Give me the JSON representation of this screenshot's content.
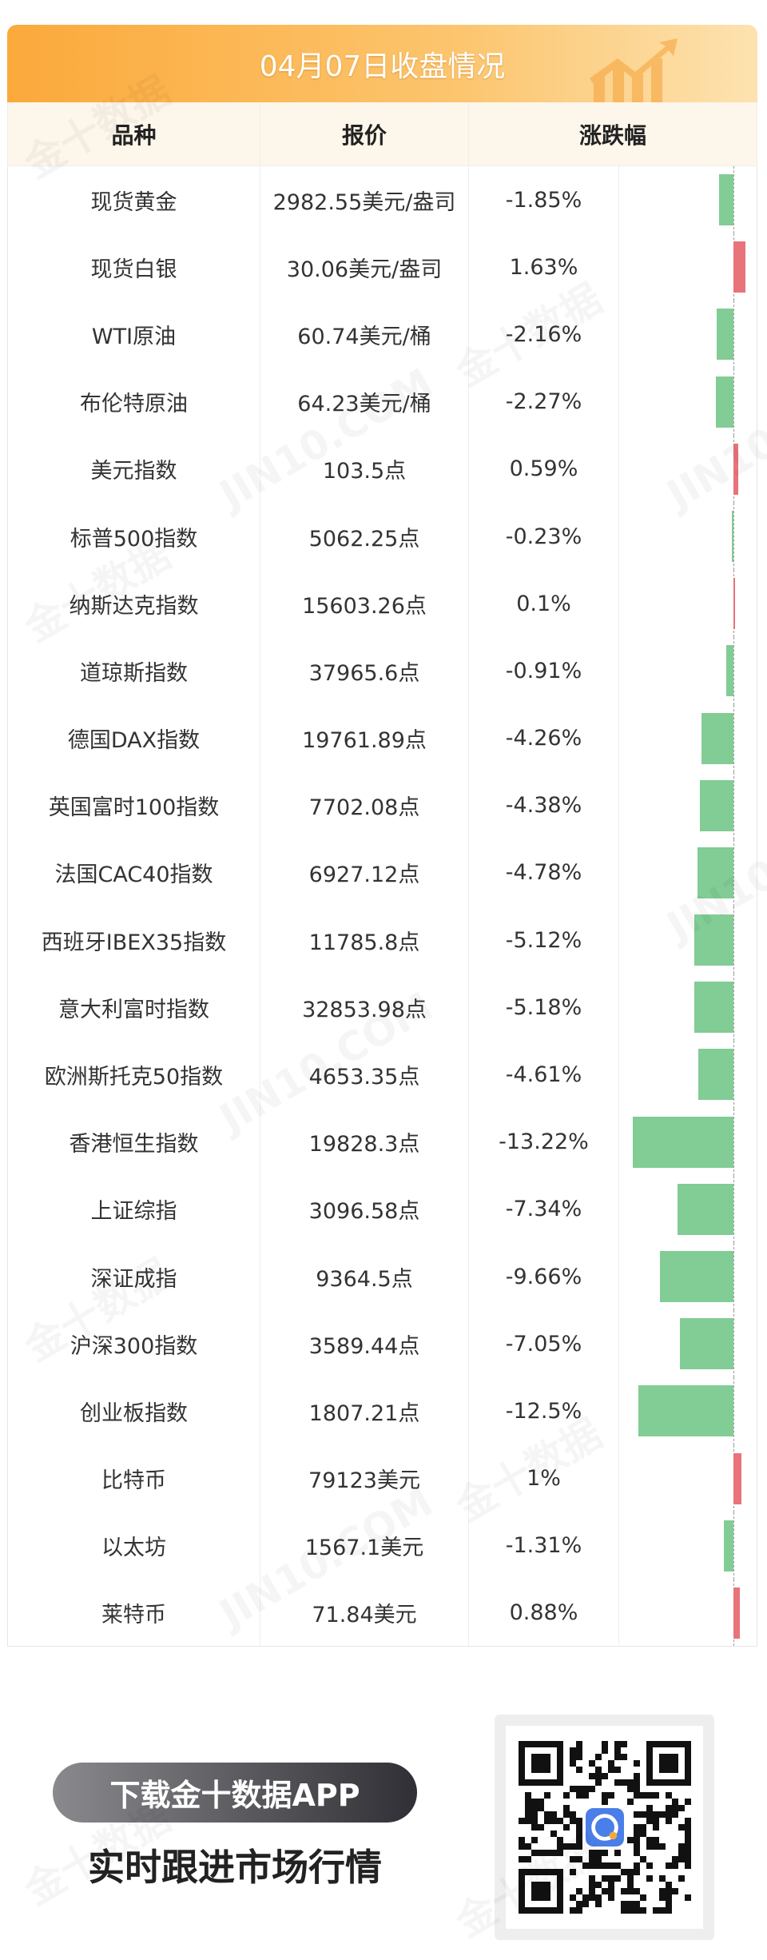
{
  "header": {
    "title": "04月07日收盘情况"
  },
  "columns": [
    "品种",
    "报价",
    "涨跌幅"
  ],
  "colors": {
    "up": "#e8737a",
    "down": "#82cc95",
    "accent": "#fba93b"
  },
  "rows": [
    {
      "name": "现货黄金",
      "price": "2982.55美元/盎司",
      "change": "-1.85%",
      "value": -1.85
    },
    {
      "name": "现货白银",
      "price": "30.06美元/盎司",
      "change": "1.63%",
      "value": 1.63
    },
    {
      "name": "WTI原油",
      "price": "60.74美元/桶",
      "change": "-2.16%",
      "value": -2.16
    },
    {
      "name": "布伦特原油",
      "price": "64.23美元/桶",
      "change": "-2.27%",
      "value": -2.27
    },
    {
      "name": "美元指数",
      "price": "103.5点",
      "change": "0.59%",
      "value": 0.59
    },
    {
      "name": "标普500指数",
      "price": "5062.25点",
      "change": "-0.23%",
      "value": -0.23
    },
    {
      "name": "纳斯达克指数",
      "price": "15603.26点",
      "change": "0.1%",
      "value": 0.1
    },
    {
      "name": "道琼斯指数",
      "price": "37965.6点",
      "change": "-0.91%",
      "value": -0.91
    },
    {
      "name": "德国DAX指数",
      "price": "19761.89点",
      "change": "-4.26%",
      "value": -4.26
    },
    {
      "name": "英国富时100指数",
      "price": "7702.08点",
      "change": "-4.38%",
      "value": -4.38
    },
    {
      "name": "法国CAC40指数",
      "price": "6927.12点",
      "change": "-4.78%",
      "value": -4.78
    },
    {
      "name": "西班牙IBEX35指数",
      "price": "11785.8点",
      "change": "-5.12%",
      "value": -5.12
    },
    {
      "name": "意大利富时指数",
      "price": "32853.98点",
      "change": "-5.18%",
      "value": -5.18
    },
    {
      "name": "欧洲斯托克50指数",
      "price": "4653.35点",
      "change": "-4.61%",
      "value": -4.61
    },
    {
      "name": "香港恒生指数",
      "price": "19828.3点",
      "change": "-13.22%",
      "value": -13.22
    },
    {
      "name": "上证综指",
      "price": "3096.58点",
      "change": "-7.34%",
      "value": -7.34
    },
    {
      "name": "深证成指",
      "price": "9364.5点",
      "change": "-9.66%",
      "value": -9.66
    },
    {
      "name": "沪深300指数",
      "price": "3589.44点",
      "change": "-7.05%",
      "value": -7.05
    },
    {
      "name": "创业板指数",
      "price": "1807.21点",
      "change": "-12.5%",
      "value": -12.5
    },
    {
      "name": "比特币",
      "price": "79123美元",
      "change": "1%",
      "value": 1
    },
    {
      "name": "以太坊",
      "price": "1567.1美元",
      "change": "-1.31%",
      "value": -1.31
    },
    {
      "name": "莱特币",
      "price": "71.84美元",
      "change": "0.88%",
      "value": 0.88
    }
  ],
  "promo": {
    "button": "下载金十数据APP",
    "subtitle": "实时跟进市场行情"
  },
  "watermark": [
    "金十数据",
    "JIN10.COM"
  ]
}
